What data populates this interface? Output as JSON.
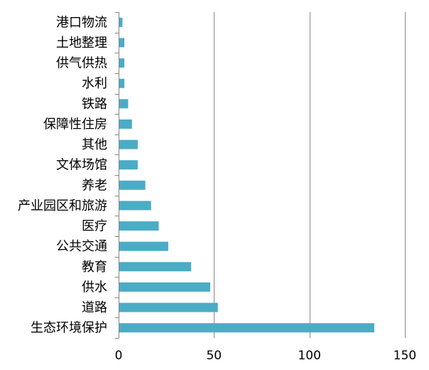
{
  "chart_data": {
    "type": "bar",
    "orientation": "horizontal",
    "categories": [
      "生态环境保护",
      "道路",
      "供水",
      "教育",
      "公共交通",
      "医疗",
      "产业园区和旅游",
      "养老",
      "文体场馆",
      "其他",
      "保障性住房",
      "铁路",
      "水利",
      "供气供热",
      "土地整理",
      "港口物流"
    ],
    "values": [
      134,
      52,
      48,
      38,
      26,
      21,
      17,
      14,
      10,
      10,
      7,
      5,
      3,
      3,
      3,
      2
    ],
    "xlim": [
      0,
      150
    ],
    "x_ticks": [
      0,
      50,
      100,
      150
    ],
    "title": "",
    "xlabel": "",
    "ylabel": "",
    "grid": "vertical",
    "bar_color": "#4BACC6",
    "grid_color": "#868686"
  }
}
